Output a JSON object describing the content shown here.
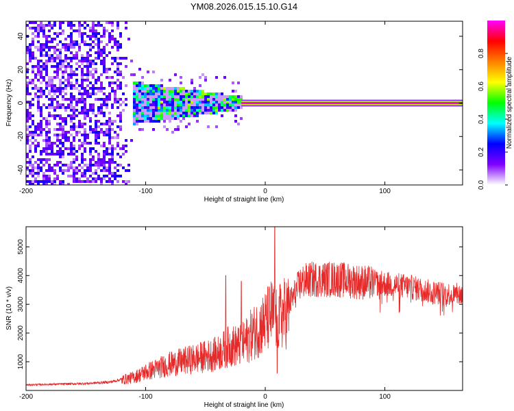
{
  "title": "YM08.2026.015.15.10.G14",
  "chart_data": [
    {
      "type": "heatmap",
      "name": "spectrogram",
      "xlabel": "Height of straight line (km)",
      "ylabel": "Frequency (Hz)",
      "xlim": [
        -200,
        165
      ],
      "ylim": [
        -49,
        49
      ],
      "xticks": [
        -200,
        -100,
        0,
        100
      ],
      "yticks": [
        40,
        20,
        0,
        -20,
        -40
      ],
      "colorbar": {
        "label": "Normalized spectral amplitude",
        "range": [
          0,
          1
        ],
        "ticks": [
          "0.0",
          "0.2",
          "0.4",
          "0.6",
          "0.8"
        ],
        "tick_values": [
          0,
          0.2,
          0.4,
          0.6,
          0.8
        ],
        "colors": [
          "#ffffff",
          "#7f00ff",
          "#0000ff",
          "#00ffff",
          "#00ff00",
          "#ffff00",
          "#ff7f00",
          "#ff0000",
          "#ff00ff"
        ]
      },
      "features": {
        "constant_tone_start_km": -20,
        "constant_tone_frequency_hz": 0,
        "noise_region_km": [
          -200,
          -110
        ],
        "transition_region_km": [
          -120,
          -20
        ]
      }
    },
    {
      "type": "line",
      "name": "snr",
      "xlabel": "Height of straight line (km)",
      "ylabel": "SNR (10 * v/v)",
      "xlim": [
        -200,
        165
      ],
      "ylim": [
        0,
        5700
      ],
      "xticks": [
        -200,
        -100,
        0,
        100
      ],
      "yticks": [
        1000,
        2000,
        3000,
        4000,
        5000
      ],
      "color": "#e62a2a",
      "envelope": {
        "x": [
          -200,
          -150,
          -130,
          -110,
          -100,
          -80,
          -60,
          -40,
          -30,
          -20,
          -10,
          0,
          5,
          10,
          15,
          20,
          25,
          30,
          40,
          50,
          60,
          80,
          100,
          120,
          140,
          165
        ],
        "mean": [
          200,
          250,
          300,
          500,
          700,
          1000,
          1200,
          1400,
          1700,
          1700,
          2200,
          2600,
          2900,
          2700,
          2900,
          3100,
          3500,
          3900,
          4000,
          4000,
          4000,
          3900,
          3800,
          3700,
          3500,
          3400
        ]
      },
      "spikes": [
        {
          "x": -33,
          "y": 4000
        },
        {
          "x": -20,
          "y": 3800
        },
        {
          "x": 8,
          "y": 5700
        },
        {
          "x": 10,
          "y": 600
        }
      ]
    }
  ]
}
